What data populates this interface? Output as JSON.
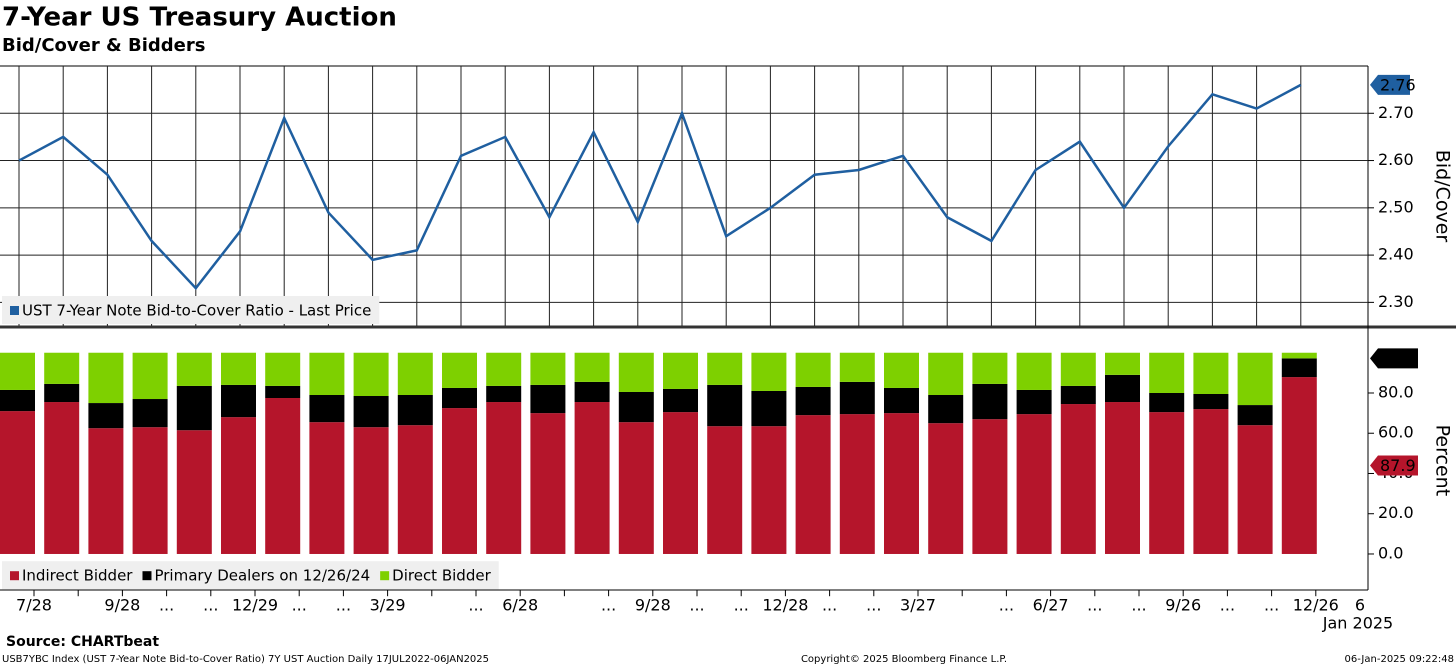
{
  "chart_data": [
    {
      "type": "line",
      "title": "7-Year US Treasury Auction",
      "subtitle": "Bid/Cover & Bidders",
      "y_label": "Bid/Cover",
      "grid": true,
      "ylim": [
        2.25,
        2.8
      ],
      "yticks": [
        {
          "value": 2.3,
          "label": "2.30"
        },
        {
          "value": 2.4,
          "label": "2.40"
        },
        {
          "value": 2.5,
          "label": "2.50"
        },
        {
          "value": 2.6,
          "label": "2.60"
        },
        {
          "value": 2.7,
          "label": "2.70"
        }
      ],
      "legend": "lower left",
      "series": [
        {
          "name": "UST 7-Year Note Bid-to-Cover Ratio - Last Price",
          "color": "#1f5fa0",
          "values": [
            2.6,
            2.65,
            2.57,
            2.43,
            2.33,
            2.45,
            2.69,
            2.49,
            2.39,
            2.41,
            2.61,
            2.65,
            2.48,
            2.66,
            2.47,
            2.7,
            2.44,
            2.5,
            2.57,
            2.58,
            2.61,
            2.48,
            2.43,
            2.58,
            2.64,
            2.5,
            2.63,
            2.74,
            2.71,
            2.76
          ],
          "value_labels": [
            null,
            null,
            null,
            null,
            null,
            null,
            null,
            null,
            null,
            null,
            null,
            null,
            null,
            null,
            null,
            null,
            null,
            null,
            null,
            null,
            null,
            null,
            null,
            null,
            null,
            null,
            null,
            null,
            null,
            "2.76"
          ]
        }
      ]
    },
    {
      "type": "stacked_bar",
      "y_label": "Percent",
      "ylim": [
        -18,
        111
      ],
      "yticks": [
        {
          "value": 0,
          "label": "0.0"
        },
        {
          "value": 20,
          "label": "20.0"
        },
        {
          "value": 40,
          "label": "40.0"
        },
        {
          "value": 60,
          "label": "60.0"
        },
        {
          "value": 80,
          "label": "80.0"
        }
      ],
      "legend": "lower left",
      "categories": [
        "7/28",
        null,
        "9/28",
        "...",
        "...",
        "12/29",
        "...",
        "...",
        "3/29",
        null,
        "...",
        "6/28",
        null,
        "...",
        "9/28",
        "...",
        "...",
        "12/28",
        "...",
        "...",
        "3/27",
        null,
        "...",
        "6/27",
        "...",
        "...",
        "9/26",
        "...",
        "...",
        "12/26"
      ],
      "x_end_label": "6",
      "x_end_sublabel": "Jan 2025",
      "series": [
        {
          "name": "Indirect Bidder",
          "color": "#b5152b",
          "values": [
            71,
            75.5,
            62.5,
            63,
            61.5,
            68,
            77.5,
            65.5,
            63,
            64,
            72.5,
            75.5,
            70,
            75.5,
            65.5,
            70.5,
            63.5,
            63.5,
            69,
            69.5,
            70,
            65,
            67,
            69.5,
            74.5,
            75.5,
            70.5,
            72,
            64,
            87.9
          ],
          "value_labels": [
            null,
            null,
            null,
            null,
            null,
            null,
            null,
            null,
            null,
            null,
            null,
            null,
            null,
            null,
            null,
            null,
            null,
            null,
            null,
            null,
            null,
            null,
            null,
            null,
            null,
            null,
            null,
            null,
            null,
            "87.9"
          ]
        },
        {
          "name": "Primary Dealers on 12/26/24",
          "color": "#000000",
          "values": [
            10.5,
            9,
            12.5,
            14,
            22,
            16,
            6,
            13.5,
            15.5,
            15,
            10,
            8,
            14,
            10,
            15,
            11.5,
            20.5,
            17.5,
            14,
            16,
            12.5,
            14,
            17.5,
            12,
            9,
            13.5,
            9.5,
            7.5,
            10,
            9.3
          ],
          "value_labels": [
            null,
            null,
            null,
            null,
            null,
            null,
            null,
            null,
            null,
            null,
            null,
            null,
            null,
            null,
            null,
            null,
            null,
            null,
            null,
            null,
            null,
            null,
            null,
            null,
            null,
            null,
            null,
            null,
            null,
            "9.3"
          ]
        },
        {
          "name": "Direct Bidder",
          "color": "#7ed000",
          "values": [
            18.5,
            15.5,
            25,
            23,
            16.5,
            16,
            16.5,
            21,
            21.5,
            21,
            17.5,
            16.5,
            16,
            14.5,
            19.5,
            18,
            16,
            19,
            17,
            14.5,
            17.5,
            21,
            15.5,
            18.5,
            16.5,
            11,
            20,
            20.5,
            26,
            2.8
          ]
        }
      ]
    }
  ],
  "source": "Source: CHARTbeat",
  "footer_left": "USB7YBC Index (UST 7-Year Note Bid-to-Cover Ratio) 7Y UST Auction  Daily 17JUL2022-06JAN2025",
  "footer_center": "Copyright© 2025 Bloomberg Finance L.P.",
  "footer_right": "06-Jan-2025 09:22:48"
}
